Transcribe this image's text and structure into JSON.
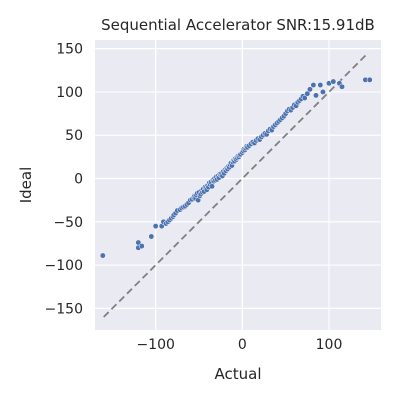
{
  "chart_data": {
    "type": "scatter",
    "title": "Sequential Accelerator SNR:15.91dB",
    "xlabel": "Actual",
    "ylabel": "Ideal",
    "xlim": [
      -170,
      160
    ],
    "ylim": [
      -175,
      160
    ],
    "xticks": [
      -100,
      0,
      100
    ],
    "yticks": [
      -150,
      -100,
      -50,
      0,
      50,
      100,
      150
    ],
    "xtick_labels": [
      "−100",
      "0",
      "100"
    ],
    "ytick_labels": [
      "−150",
      "−100",
      "−50",
      "0",
      "50",
      "100",
      "150"
    ],
    "grid": true,
    "reference_line": {
      "style": "dashed",
      "color": "#808080",
      "from": [
        -160,
        -160
      ],
      "to": [
        145,
        145
      ]
    },
    "point_color": "#4c72b0",
    "background_color": "#eaeaf2",
    "series": [
      {
        "points": [
          [
            -161,
            -89
          ],
          [
            -120,
            -74
          ],
          [
            -120,
            -80
          ],
          [
            -116,
            -78
          ],
          [
            -105,
            -67
          ],
          [
            -100,
            -55
          ],
          [
            -93,
            -55
          ],
          [
            -91,
            -50
          ],
          [
            -88,
            -52
          ],
          [
            -86,
            -50
          ],
          [
            -84,
            -48
          ],
          [
            -82,
            -46
          ],
          [
            -80,
            -44
          ],
          [
            -79,
            -42
          ],
          [
            -77,
            -40
          ],
          [
            -75,
            -37
          ],
          [
            -72,
            -36
          ],
          [
            -70,
            -34
          ],
          [
            -68,
            -33
          ],
          [
            -66,
            -32
          ],
          [
            -64,
            -30
          ],
          [
            -62,
            -28
          ],
          [
            -60,
            -25
          ],
          [
            -58,
            -24
          ],
          [
            -56,
            -22
          ],
          [
            -55,
            -20
          ],
          [
            -54,
            -23
          ],
          [
            -53,
            -19
          ],
          [
            -52,
            -17
          ],
          [
            -51,
            -25
          ],
          [
            -50,
            -16
          ],
          [
            -49,
            -20
          ],
          [
            -48,
            -18
          ],
          [
            -47,
            -14
          ],
          [
            -46,
            -16
          ],
          [
            -45,
            -12
          ],
          [
            -44,
            -15
          ],
          [
            -43,
            -10
          ],
          [
            -42,
            -11
          ],
          [
            -41,
            -13
          ],
          [
            -40,
            -8
          ],
          [
            -39,
            -10
          ],
          [
            -38,
            -5
          ],
          [
            -37,
            -7
          ],
          [
            -36,
            -4
          ],
          [
            -35,
            -9
          ],
          [
            -34,
            -2
          ],
          [
            -33,
            -3
          ],
          [
            -32,
            0
          ],
          [
            -31,
            -2
          ],
          [
            -30,
            2
          ],
          [
            -29,
            -1
          ],
          [
            -28,
            3
          ],
          [
            -27,
            1
          ],
          [
            -26,
            5
          ],
          [
            -25,
            4
          ],
          [
            -24,
            6
          ],
          [
            -23,
            3
          ],
          [
            -22,
            8
          ],
          [
            -21,
            6
          ],
          [
            -20,
            10
          ],
          [
            -19,
            9
          ],
          [
            -18,
            12
          ],
          [
            -17,
            11
          ],
          [
            -16,
            14
          ],
          [
            -15,
            13
          ],
          [
            -14,
            16
          ],
          [
            -13,
            18
          ],
          [
            -12,
            15
          ],
          [
            -11,
            19
          ],
          [
            -10,
            21
          ],
          [
            -9,
            20
          ],
          [
            -8,
            23
          ],
          [
            -7,
            22
          ],
          [
            -6,
            24
          ],
          [
            -5,
            26
          ],
          [
            -4,
            25
          ],
          [
            -3,
            27
          ],
          [
            -2,
            28
          ],
          [
            0,
            30
          ],
          [
            1,
            32
          ],
          [
            2,
            34
          ],
          [
            3,
            33
          ],
          [
            4,
            35
          ],
          [
            5,
            37
          ],
          [
            6,
            36
          ],
          [
            8,
            38
          ],
          [
            10,
            40
          ],
          [
            12,
            42
          ],
          [
            14,
            41
          ],
          [
            16,
            44
          ],
          [
            18,
            46
          ],
          [
            20,
            45
          ],
          [
            22,
            48
          ],
          [
            24,
            50
          ],
          [
            26,
            52
          ],
          [
            28,
            51
          ],
          [
            30,
            55
          ],
          [
            32,
            57
          ],
          [
            34,
            56
          ],
          [
            36,
            60
          ],
          [
            38,
            62
          ],
          [
            40,
            64
          ],
          [
            42,
            66
          ],
          [
            44,
            68
          ],
          [
            46,
            70
          ],
          [
            48,
            72
          ],
          [
            50,
            75
          ],
          [
            52,
            78
          ],
          [
            54,
            80
          ],
          [
            56,
            79
          ],
          [
            58,
            82
          ],
          [
            60,
            85
          ],
          [
            62,
            84
          ],
          [
            64,
            88
          ],
          [
            66,
            90
          ],
          [
            68,
            92
          ],
          [
            70,
            95
          ],
          [
            72,
            93
          ],
          [
            75,
            98
          ],
          [
            78,
            103
          ],
          [
            82,
            108
          ],
          [
            85,
            96
          ],
          [
            90,
            108
          ],
          [
            93,
            100
          ],
          [
            100,
            110
          ],
          [
            105,
            112
          ],
          [
            112,
            110
          ],
          [
            115,
            106
          ],
          [
            142,
            114
          ],
          [
            147,
            114
          ]
        ]
      }
    ]
  }
}
